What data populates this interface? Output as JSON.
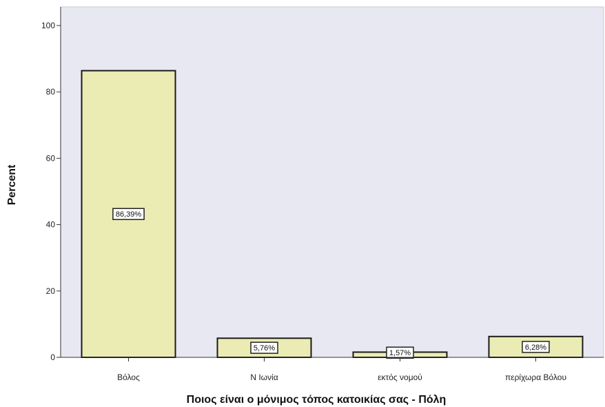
{
  "chart_data": {
    "type": "bar",
    "categories": [
      "Βόλος",
      "Ν Ιωνία",
      "εκτός νομού",
      "περίχωρα Βόλου"
    ],
    "values": [
      86.39,
      5.76,
      1.57,
      6.28
    ],
    "data_labels": [
      "86,39%",
      "5,76%",
      "1,57%",
      "6,28%"
    ],
    "xlabel": "Ποιος είναι ο μόνιμος τόπος κατοικίας σας - Πόλη",
    "ylabel": "Percent",
    "ylim": [
      0,
      100
    ],
    "yticks": [
      0,
      20,
      40,
      60,
      80,
      100
    ],
    "grid": false,
    "bar_color": "#ebebb4",
    "plot_background": "#e8e8f2",
    "bar_edge_color": "#1a1a1a"
  }
}
